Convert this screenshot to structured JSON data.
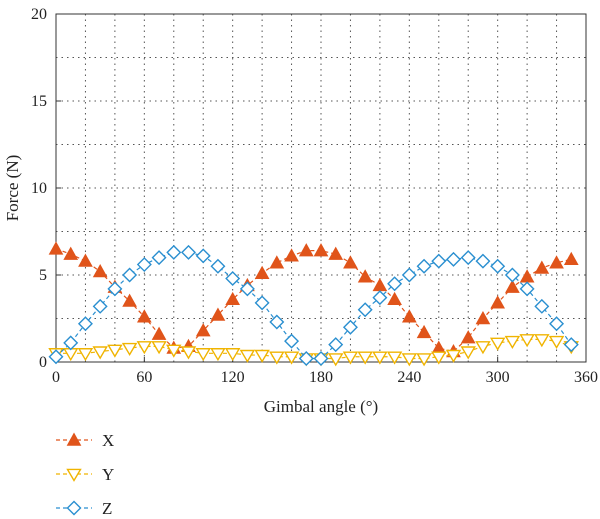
{
  "chart_data": {
    "type": "line",
    "xlabel": "Gimbal angle (°)",
    "ylabel": "Force (N)",
    "xlim": [
      0,
      360
    ],
    "ylim": [
      0,
      20
    ],
    "xticks": [
      0,
      60,
      120,
      180,
      240,
      300,
      360
    ],
    "yticks": [
      0,
      5,
      10,
      15,
      20
    ],
    "x_minor_grid_step": 20,
    "y_minor_grid_step": 2.5,
    "grid": true,
    "legend_position": "bottom-left, below plot",
    "x": [
      0,
      10,
      20,
      30,
      40,
      50,
      60,
      70,
      80,
      90,
      100,
      110,
      120,
      130,
      140,
      150,
      160,
      170,
      180,
      190,
      200,
      210,
      220,
      230,
      240,
      250,
      260,
      270,
      280,
      290,
      300,
      310,
      320,
      330,
      340,
      350
    ],
    "series": [
      {
        "name": "X",
        "color": "#e0541a",
        "marker": "triangle-up-filled",
        "values": [
          6.5,
          6.2,
          5.8,
          5.2,
          4.3,
          3.5,
          2.6,
          1.6,
          0.8,
          0.9,
          1.8,
          2.7,
          3.6,
          4.4,
          5.1,
          5.7,
          6.1,
          6.4,
          6.4,
          6.2,
          5.7,
          4.9,
          4.4,
          3.6,
          2.6,
          1.7,
          0.8,
          0.6,
          1.4,
          2.5,
          3.4,
          4.3,
          4.9,
          5.4,
          5.7,
          5.9
        ]
      },
      {
        "name": "Y",
        "color": "#f0b400",
        "marker": "triangle-down-open",
        "values": [
          0.5,
          0.5,
          0.5,
          0.6,
          0.7,
          0.8,
          0.9,
          0.9,
          0.7,
          0.6,
          0.5,
          0.5,
          0.5,
          0.4,
          0.4,
          0.3,
          0.3,
          0.2,
          0.2,
          0.2,
          0.3,
          0.3,
          0.3,
          0.3,
          0.2,
          0.2,
          0.3,
          0.4,
          0.6,
          0.9,
          1.1,
          1.2,
          1.3,
          1.3,
          1.2,
          0.9
        ]
      },
      {
        "name": "Z",
        "color": "#2a8fd0",
        "marker": "diamond-open",
        "values": [
          0.3,
          1.1,
          2.2,
          3.2,
          4.2,
          5.0,
          5.6,
          6.0,
          6.3,
          6.3,
          6.1,
          5.5,
          4.8,
          4.2,
          3.4,
          2.3,
          1.2,
          0.2,
          0.2,
          1.0,
          2.0,
          3.0,
          3.7,
          4.5,
          5.0,
          5.5,
          5.8,
          5.9,
          6.0,
          5.8,
          5.5,
          5.0,
          4.2,
          3.2,
          2.2,
          1.0
        ]
      }
    ]
  }
}
